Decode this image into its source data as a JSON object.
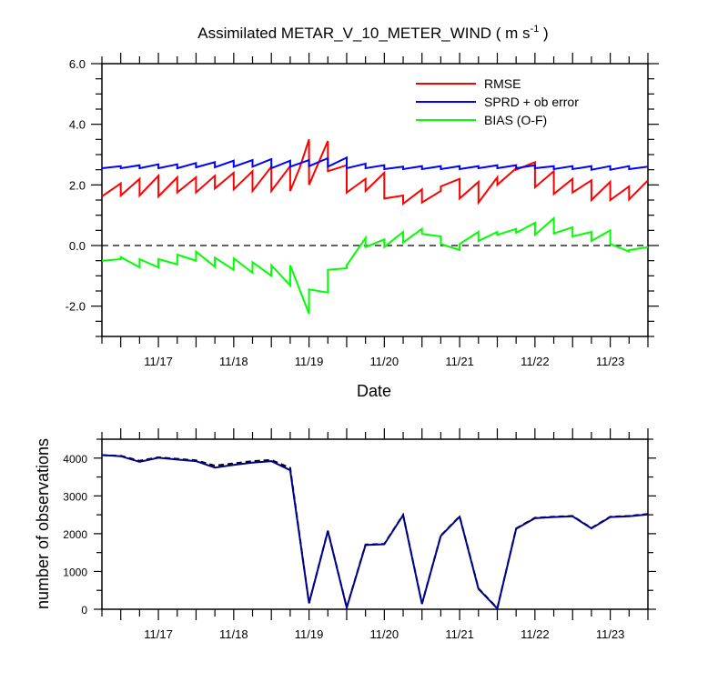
{
  "chart_data": [
    {
      "type": "line",
      "title": "Assimilated METAR_V_10_METER_WIND ( m s",
      "title_unit_exp": "-1",
      "title_close": " )",
      "xlabel": "Date",
      "ylabel": "",
      "ylim": [
        -3.0,
        6.0
      ],
      "xlim": [
        0,
        14.5
      ],
      "yticks": [
        -2.0,
        0.0,
        2.0,
        4.0,
        6.0
      ],
      "ytick_labels": [
        "-2.0",
        "0.0",
        "2.0",
        "4.0",
        "6.0"
      ],
      "xticks": [
        1.5,
        3.5,
        5.5,
        7.5,
        9.5,
        11.5,
        13.5
      ],
      "xtick_labels": [
        "11/17",
        "11/18",
        "11/19",
        "11/20",
        "11/21",
        "11/22",
        "11/23"
      ],
      "zero_line": true,
      "legend_position": "top-right",
      "series": [
        {
          "name": "RMSE",
          "color": "#ff0000",
          "points": [
            [
              0,
              1.62
            ],
            [
              0.5,
              2.05
            ],
            [
              0.5,
              1.65
            ],
            [
              1,
              2.2
            ],
            [
              1,
              1.65
            ],
            [
              1.5,
              2.3
            ],
            [
              1.5,
              1.62
            ],
            [
              2,
              2.25
            ],
            [
              2,
              1.75
            ],
            [
              2.5,
              2.25
            ],
            [
              2.5,
              1.75
            ],
            [
              3,
              2.3
            ],
            [
              3,
              1.88
            ],
            [
              3.5,
              2.4
            ],
            [
              3.5,
              1.85
            ],
            [
              4,
              2.45
            ],
            [
              4,
              1.8
            ],
            [
              4.5,
              2.6
            ],
            [
              4.5,
              1.8
            ],
            [
              5,
              2.62
            ],
            [
              5,
              1.8
            ],
            [
              5.25,
              2.55
            ],
            [
              5.5,
              3.5
            ],
            [
              5.5,
              2.0
            ],
            [
              6,
              3.45
            ],
            [
              6,
              2.45
            ],
            [
              6.5,
              2.65
            ],
            [
              6.5,
              1.75
            ],
            [
              7,
              2.2
            ],
            [
              7,
              1.8
            ],
            [
              7.5,
              2.4
            ],
            [
              7.5,
              1.55
            ],
            [
              8,
              1.65
            ],
            [
              8,
              1.38
            ],
            [
              8.5,
              1.85
            ],
            [
              8.5,
              1.42
            ],
            [
              9,
              1.8
            ],
            [
              9,
              1.95
            ],
            [
              9.5,
              2.2
            ],
            [
              9.5,
              1.55
            ],
            [
              10,
              2.1
            ],
            [
              10,
              1.42
            ],
            [
              10.5,
              2.25
            ],
            [
              10.5,
              2.0
            ],
            [
              11,
              2.55
            ],
            [
              11,
              2.5
            ],
            [
              11.5,
              2.75
            ],
            [
              11.5,
              1.92
            ],
            [
              12,
              2.45
            ],
            [
              12,
              1.7
            ],
            [
              12.5,
              2.2
            ],
            [
              12.5,
              1.75
            ],
            [
              13,
              2.15
            ],
            [
              13,
              1.5
            ],
            [
              13.5,
              2.1
            ],
            [
              13.5,
              1.5
            ],
            [
              14,
              1.95
            ],
            [
              14,
              1.52
            ],
            [
              14.5,
              2.15
            ]
          ]
        },
        {
          "name": "SPRD + ob error",
          "color": "#0000ff",
          "points": [
            [
              0,
              2.55
            ],
            [
              0.5,
              2.62
            ],
            [
              0.5,
              2.55
            ],
            [
              1,
              2.65
            ],
            [
              1,
              2.55
            ],
            [
              1.5,
              2.68
            ],
            [
              1.5,
              2.55
            ],
            [
              2,
              2.68
            ],
            [
              2,
              2.55
            ],
            [
              2.5,
              2.72
            ],
            [
              2.5,
              2.58
            ],
            [
              3,
              2.75
            ],
            [
              3,
              2.58
            ],
            [
              3.5,
              2.8
            ],
            [
              3.5,
              2.6
            ],
            [
              4,
              2.82
            ],
            [
              4,
              2.6
            ],
            [
              4.5,
              2.85
            ],
            [
              4.5,
              2.55
            ],
            [
              5,
              2.8
            ],
            [
              5,
              2.6
            ],
            [
              5.5,
              2.82
            ],
            [
              5.5,
              2.62
            ],
            [
              6,
              2.88
            ],
            [
              6,
              2.6
            ],
            [
              6.5,
              2.9
            ],
            [
              6.5,
              2.55
            ],
            [
              7,
              2.7
            ],
            [
              7,
              2.55
            ],
            [
              7.5,
              2.65
            ],
            [
              7.5,
              2.52
            ],
            [
              8,
              2.6
            ],
            [
              8,
              2.52
            ],
            [
              8.5,
              2.62
            ],
            [
              8.5,
              2.52
            ],
            [
              9,
              2.62
            ],
            [
              9,
              2.52
            ],
            [
              9.5,
              2.62
            ],
            [
              9.5,
              2.52
            ],
            [
              10,
              2.62
            ],
            [
              10,
              2.55
            ],
            [
              10.5,
              2.65
            ],
            [
              10.5,
              2.55
            ],
            [
              11,
              2.65
            ],
            [
              11,
              2.55
            ],
            [
              11.5,
              2.65
            ],
            [
              11.5,
              2.55
            ],
            [
              12,
              2.62
            ],
            [
              12,
              2.52
            ],
            [
              12.5,
              2.62
            ],
            [
              12.5,
              2.52
            ],
            [
              13,
              2.62
            ],
            [
              13,
              2.5
            ],
            [
              13.5,
              2.62
            ],
            [
              13.5,
              2.5
            ],
            [
              14,
              2.62
            ],
            [
              14,
              2.52
            ],
            [
              14.5,
              2.6
            ]
          ]
        },
        {
          "name": "BIAS (O-F)",
          "color": "#00ff00",
          "points": [
            [
              0,
              -0.5
            ],
            [
              0.5,
              -0.45
            ],
            [
              0.5,
              -0.38
            ],
            [
              1,
              -0.72
            ],
            [
              1,
              -0.45
            ],
            [
              1.5,
              -0.72
            ],
            [
              1.5,
              -0.45
            ],
            [
              2,
              -0.62
            ],
            [
              2,
              -0.3
            ],
            [
              2.5,
              -0.5
            ],
            [
              2.5,
              -0.2
            ],
            [
              3,
              -0.7
            ],
            [
              3,
              -0.4
            ],
            [
              3.5,
              -0.8
            ],
            [
              3.5,
              -0.42
            ],
            [
              4,
              -0.9
            ],
            [
              4,
              -0.55
            ],
            [
              4.5,
              -1.0
            ],
            [
              4.5,
              -0.65
            ],
            [
              5,
              -1.32
            ],
            [
              5,
              -0.65
            ],
            [
              5.5,
              -2.25
            ],
            [
              5.5,
              -1.45
            ],
            [
              6,
              -1.55
            ],
            [
              6,
              -0.8
            ],
            [
              6.5,
              -0.75
            ],
            [
              6.5,
              -0.65
            ],
            [
              7,
              0.25
            ],
            [
              7,
              -0.05
            ],
            [
              7.5,
              0.2
            ],
            [
              7.5,
              -0.05
            ],
            [
              8,
              0.45
            ],
            [
              8,
              0.1
            ],
            [
              8.5,
              0.55
            ],
            [
              8.5,
              0.38
            ],
            [
              9,
              0.3
            ],
            [
              9,
              0.05
            ],
            [
              9.5,
              -0.15
            ],
            [
              9.5,
              0.05
            ],
            [
              10,
              0.45
            ],
            [
              10,
              0.15
            ],
            [
              10.5,
              0.45
            ],
            [
              10.5,
              0.35
            ],
            [
              11,
              0.55
            ],
            [
              11,
              0.42
            ],
            [
              11.5,
              0.75
            ],
            [
              11.5,
              0.35
            ],
            [
              12,
              0.9
            ],
            [
              12,
              0.4
            ],
            [
              12.5,
              0.6
            ],
            [
              12.5,
              0.3
            ],
            [
              13,
              0.45
            ],
            [
              13,
              0.15
            ],
            [
              13.5,
              0.5
            ],
            [
              13.5,
              0.05
            ],
            [
              14,
              -0.2
            ],
            [
              14,
              -0.15
            ],
            [
              14.5,
              -0.05
            ]
          ]
        }
      ]
    },
    {
      "type": "line",
      "title": "",
      "xlabel": "",
      "ylabel": "number of observations",
      "ylim": [
        0,
        4500
      ],
      "xlim": [
        0,
        14.5
      ],
      "yticks": [
        0,
        1000,
        2000,
        3000,
        4000
      ],
      "ytick_labels": [
        "0",
        "1000",
        "2000",
        "3000",
        "4000"
      ],
      "xticks": [
        1.5,
        3.5,
        5.5,
        7.5,
        9.5,
        11.5,
        13.5
      ],
      "xtick_labels": [
        "11/17",
        "11/18",
        "11/19",
        "11/20",
        "11/21",
        "11/22",
        "11/23"
      ],
      "series": [
        {
          "color": "#000000",
          "dash": true,
          "points": [
            [
              0,
              4080
            ],
            [
              0.5,
              4060
            ],
            [
              1,
              3930
            ],
            [
              1.5,
              4020
            ],
            [
              2,
              3980
            ],
            [
              2.5,
              3940
            ],
            [
              3,
              3800
            ],
            [
              3.5,
              3860
            ],
            [
              4,
              3920
            ],
            [
              4.5,
              3950
            ],
            [
              5,
              3740
            ],
            [
              5.5,
              160
            ],
            [
              6,
              2080
            ],
            [
              6.5,
              50
            ],
            [
              7,
              1710
            ],
            [
              7.5,
              1730
            ],
            [
              8,
              2500
            ],
            [
              8.5,
              150
            ],
            [
              9,
              1950
            ],
            [
              9.5,
              2460
            ],
            [
              10,
              550
            ],
            [
              10.5,
              30
            ],
            [
              11,
              2140
            ],
            [
              11.5,
              2420
            ],
            [
              12,
              2450
            ],
            [
              12.5,
              2470
            ],
            [
              13,
              2150
            ],
            [
              13.5,
              2450
            ],
            [
              14,
              2470
            ],
            [
              14.5,
              2520
            ]
          ]
        },
        {
          "color": "#00008b",
          "dash": false,
          "points": [
            [
              0,
              4080
            ],
            [
              0.5,
              4050
            ],
            [
              1,
              3900
            ],
            [
              1.5,
              4010
            ],
            [
              2,
              3960
            ],
            [
              2.5,
              3920
            ],
            [
              3,
              3750
            ],
            [
              3.5,
              3820
            ],
            [
              4,
              3880
            ],
            [
              4.5,
              3920
            ],
            [
              5,
              3680
            ],
            [
              5.5,
              160
            ],
            [
              6,
              2070
            ],
            [
              6.5,
              40
            ],
            [
              7,
              1700
            ],
            [
              7.5,
              1720
            ],
            [
              8,
              2490
            ],
            [
              8.5,
              140
            ],
            [
              9,
              1940
            ],
            [
              9.5,
              2450
            ],
            [
              10,
              540
            ],
            [
              10.5,
              20
            ],
            [
              11,
              2130
            ],
            [
              11.5,
              2410
            ],
            [
              12,
              2440
            ],
            [
              12.5,
              2460
            ],
            [
              13,
              2140
            ],
            [
              13.5,
              2440
            ],
            [
              14,
              2460
            ],
            [
              14.5,
              2510
            ]
          ]
        }
      ]
    }
  ]
}
